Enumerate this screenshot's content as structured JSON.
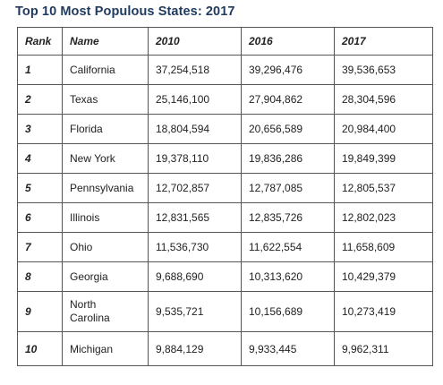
{
  "title": "Top 10 Most Populous States: 2017",
  "table": {
    "headers": {
      "rank": "Rank",
      "name": "Name",
      "y2010": "2010",
      "y2016": "2016",
      "y2017": "2017"
    },
    "rows": [
      {
        "rank": "1",
        "name": "California",
        "y2010": "37,254,518",
        "y2016": "39,296,476",
        "y2017": "39,536,653"
      },
      {
        "rank": "2",
        "name": "Texas",
        "y2010": "25,146,100",
        "y2016": "27,904,862",
        "y2017": "28,304,596"
      },
      {
        "rank": "3",
        "name": "Florida",
        "y2010": "18,804,594",
        "y2016": "20,656,589",
        "y2017": "20,984,400"
      },
      {
        "rank": "4",
        "name": "New York",
        "y2010": "19,378,110",
        "y2016": "19,836,286",
        "y2017": "19,849,399"
      },
      {
        "rank": "5",
        "name": "Pennsylvania",
        "y2010": "12,702,857",
        "y2016": "12,787,085",
        "y2017": "12,805,537"
      },
      {
        "rank": "6",
        "name": "Illinois",
        "y2010": "12,831,565",
        "y2016": "12,835,726",
        "y2017": "12,802,023"
      },
      {
        "rank": "7",
        "name": "Ohio",
        "y2010": "11,536,730",
        "y2016": "11,622,554",
        "y2017": "11,658,609"
      },
      {
        "rank": "8",
        "name": "Georgia",
        "y2010": "9,688,690",
        "y2016": "10,313,620",
        "y2017": "10,429,379"
      },
      {
        "rank": "9",
        "name": "North Carolina",
        "y2010": "9,535,721",
        "y2016": "10,156,689",
        "y2017": "10,273,419"
      },
      {
        "rank": "10",
        "name": "Michigan",
        "y2010": "9,884,129",
        "y2016": "9,933,445",
        "y2017": "9,962,311"
      }
    ]
  }
}
